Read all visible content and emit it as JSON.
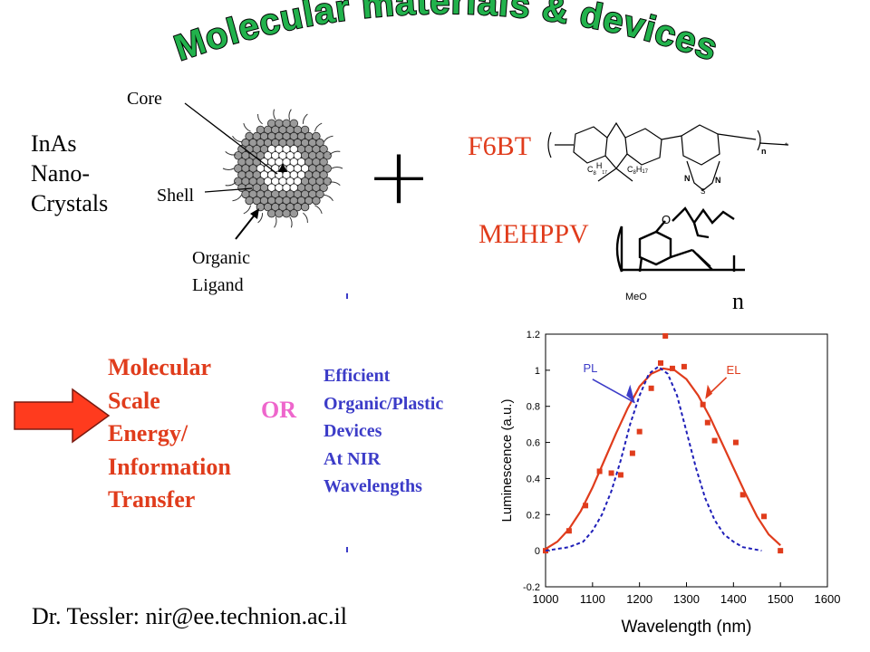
{
  "slide": {
    "title": "Molecular materials & devices",
    "colors": {
      "title_fill": "#22b24c",
      "red": "#e03c1c",
      "pink": "#ee66cc",
      "blue": "#3c3cc8",
      "arrow": "#ff3b1e",
      "dashed": "#1f1fb8"
    }
  },
  "nano": {
    "label_lines": [
      "InAs",
      "Nano-",
      "Crystals"
    ],
    "core_label": "Core",
    "shell_label": "Shell",
    "ligand_lines": [
      "Organic",
      "Ligand"
    ]
  },
  "plus_symbol": "+",
  "f6bt": {
    "label": "F6BT",
    "c8h17_left": [
      "C",
      "8",
      "H",
      "17"
    ],
    "c8h17_right": [
      "C",
      "8",
      "H",
      "17"
    ],
    "atom_n": "N",
    "atom_s": "S",
    "repeat_n": "n",
    "star": "*"
  },
  "mehppv": {
    "label": "MEHPPV",
    "atom_o": "O",
    "meo": "MeO",
    "repeat_n": "n"
  },
  "left_text": {
    "lines": [
      "Molecular",
      "Scale",
      "Energy/",
      "Information",
      "Transfer"
    ]
  },
  "or_text": "OR",
  "right_text": {
    "lines": [
      "Efficient",
      "Organic/Plastic",
      "Devices",
      "At NIR",
      "Wavelengths"
    ]
  },
  "footer": {
    "contact": "Dr. Tessler: nir@ee.technion.ac.il"
  },
  "chart_data": {
    "type": "scatter",
    "title": "",
    "xlabel": "Wavelength (nm)",
    "ylabel": "Luminescence (a.u.)",
    "xlim": [
      1000,
      1600
    ],
    "ylim": [
      -0.2,
      1.2
    ],
    "x_ticks": [
      1000,
      1100,
      1200,
      1300,
      1400,
      1500,
      1600
    ],
    "x_tick_labels": [
      "1000",
      "1100",
      "1200",
      "1300",
      "1400",
      "1500",
      "1600"
    ],
    "y_ticks": [
      -0.2,
      0,
      0.2,
      0.4,
      0.6,
      0.8,
      1,
      1.2
    ],
    "y_tick_labels": [
      "-0.2",
      "0",
      "0.2",
      "0.4",
      "0.6",
      "0.8",
      "1",
      "1.2"
    ],
    "grid": false,
    "annotations": [
      {
        "text": "PL",
        "color": "#3c3cc8"
      },
      {
        "text": "EL",
        "color": "#e03c1c"
      }
    ],
    "series": [
      {
        "style": "points",
        "color": "#e03c1c",
        "x": [
          1000,
          1050,
          1085,
          1115,
          1140,
          1160,
          1185,
          1200,
          1225,
          1245,
          1255,
          1270,
          1295,
          1335,
          1345,
          1360,
          1405,
          1420,
          1465,
          1500
        ],
        "y": [
          0.0,
          0.11,
          0.25,
          0.44,
          0.43,
          0.42,
          0.54,
          0.66,
          0.9,
          1.04,
          1.19,
          1.01,
          1.02,
          0.81,
          0.71,
          0.61,
          0.6,
          0.31,
          0.19,
          0.0
        ]
      },
      {
        "style": "solid",
        "color": "#e03c1c",
        "x": [
          1000,
          1025,
          1050,
          1075,
          1100,
          1125,
          1150,
          1175,
          1200,
          1225,
          1250,
          1275,
          1300,
          1325,
          1350,
          1375,
          1400,
          1425,
          1450,
          1475,
          1500
        ],
        "y": [
          0.01,
          0.05,
          0.12,
          0.22,
          0.35,
          0.5,
          0.65,
          0.79,
          0.91,
          0.98,
          1.01,
          1.0,
          0.95,
          0.86,
          0.74,
          0.6,
          0.46,
          0.32,
          0.19,
          0.09,
          0.03
        ]
      },
      {
        "style": "dashed",
        "color": "#1f1fb8",
        "x": [
          1000,
          1050,
          1080,
          1100,
          1120,
          1140,
          1160,
          1180,
          1200,
          1220,
          1240,
          1260,
          1280,
          1300,
          1320,
          1340,
          1360,
          1380,
          1400,
          1420,
          1440,
          1460
        ],
        "y": [
          0.0,
          0.02,
          0.05,
          0.11,
          0.2,
          0.33,
          0.5,
          0.7,
          0.86,
          0.98,
          1.02,
          0.98,
          0.86,
          0.66,
          0.46,
          0.29,
          0.17,
          0.09,
          0.05,
          0.02,
          0.01,
          0.0
        ]
      }
    ]
  }
}
